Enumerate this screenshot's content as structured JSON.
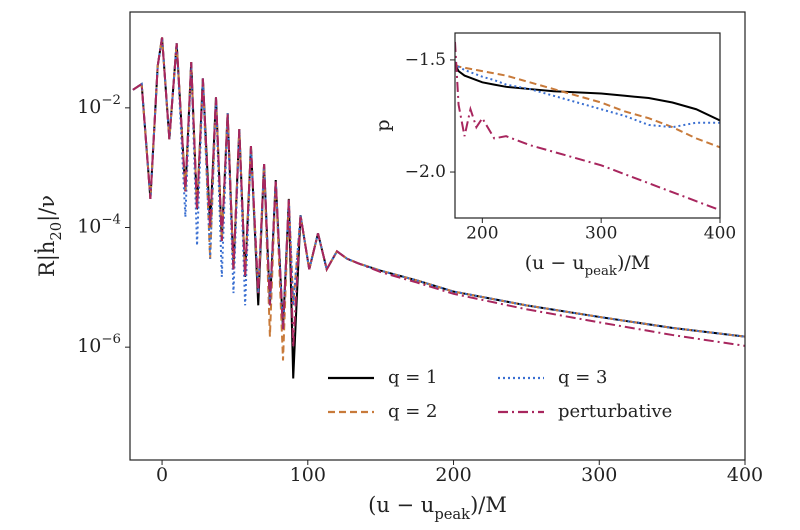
{
  "chart_data": [
    {
      "type": "line",
      "log_y": true,
      "x_label": [
        "(u − u",
        "peak",
        ")/M"
      ],
      "y_label": [
        "R|ḣ",
        "20",
        "|/ν"
      ],
      "xlim": [
        -22,
        400
      ],
      "ylim": [
        1.3e-08,
        0.4
      ],
      "xticks": [
        0,
        100,
        200,
        300,
        400
      ],
      "yticks": [
        {
          "value": 0.01,
          "label": "10",
          "exponent": "−2"
        },
        {
          "value": 0.0001,
          "label": "10",
          "exponent": "−4"
        },
        {
          "value": 1e-06,
          "label": "10",
          "exponent": "−6"
        }
      ],
      "legend": "lower right",
      "x": [
        -20,
        -14,
        -8,
        -3,
        0,
        5,
        10,
        16,
        20,
        24,
        28,
        33,
        37,
        41,
        45,
        49,
        53,
        57,
        61,
        66,
        70,
        74,
        78,
        83,
        87,
        90,
        95,
        101,
        107,
        113,
        120,
        127,
        135,
        150,
        175,
        200,
        250,
        300,
        350,
        400
      ],
      "series": [
        {
          "name": "q = 1",
          "color": "#000000",
          "linestyle": "solid",
          "values": [
            0.02,
            0.025,
            0.0003,
            0.05,
            0.15,
            0.003,
            0.12,
            0.0004,
            0.058,
            0.0002,
            0.031,
            0.0001,
            0.015,
            6e-05,
            0.0081,
            2e-05,
            0.0044,
            1.5e-05,
            0.0023,
            5e-06,
            0.00115,
            5e-06,
            0.00062,
            2e-06,
            0.0003,
            3e-07,
            0.00016,
            2e-05,
            8e-05,
            2e-05,
            4e-05,
            3e-05,
            2.5e-05,
            1.9e-05,
            1.3e-05,
            8.5e-06,
            5e-06,
            3.2e-06,
            2.1e-06,
            1.5e-06
          ]
        },
        {
          "name": "q = 2",
          "color": "#c87a3a",
          "linestyle": "dashed",
          "values": [
            0.02,
            0.025,
            0.0003,
            0.05,
            0.15,
            0.003,
            0.12,
            0.0004,
            0.058,
            0.0002,
            0.031,
            3e-05,
            0.015,
            6e-05,
            0.0081,
            2e-05,
            0.0044,
            1.5e-05,
            0.0023,
            8e-06,
            0.00115,
            1.5e-06,
            0.00062,
            6e-07,
            0.0003,
            5e-06,
            0.00016,
            2e-05,
            8e-05,
            2e-05,
            4e-05,
            3e-05,
            2.5e-05,
            1.9e-05,
            1.3e-05,
            8.5e-06,
            5e-06,
            3.2e-06,
            2.1e-06,
            1.5e-06
          ]
        },
        {
          "name": "q = 3",
          "color": "#3a6fd1",
          "linestyle": "dotted",
          "values": [
            0.02,
            0.025,
            0.0003,
            0.05,
            0.15,
            0.003,
            0.12,
            0.00015,
            0.058,
            5e-05,
            0.031,
            3e-05,
            0.015,
            1.5e-05,
            0.0081,
            8e-06,
            0.0044,
            5e-06,
            0.0023,
            8e-06,
            0.00115,
            5e-06,
            0.00062,
            2e-06,
            0.0003,
            5e-06,
            0.00016,
            2e-05,
            8e-05,
            2e-05,
            4e-05,
            3e-05,
            2.5e-05,
            1.9e-05,
            1.3e-05,
            8.5e-06,
            5e-06,
            3.2e-06,
            2.1e-06,
            1.5e-06
          ]
        },
        {
          "name": "perturbative",
          "color": "#a8265e",
          "linestyle": "dashdot",
          "values": [
            0.02,
            0.025,
            0.0003,
            0.05,
            0.15,
            0.003,
            0.12,
            0.0004,
            0.058,
            0.0002,
            0.031,
            0.0001,
            0.015,
            6e-05,
            0.0081,
            2e-05,
            0.0044,
            1.5e-05,
            0.0023,
            8e-06,
            0.00115,
            5e-06,
            0.00062,
            2e-06,
            0.0003,
            1e-06,
            0.00016,
            2e-05,
            8e-05,
            2e-05,
            4e-05,
            3e-05,
            2.5e-05,
            1.8e-05,
            1.2e-05,
            7.8e-06,
            4.3e-06,
            2.6e-06,
            1.6e-06,
            1.05e-06
          ]
        }
      ]
    },
    {
      "type": "line",
      "log_y": false,
      "x_label": [
        "(u − u",
        "peak",
        ")/M"
      ],
      "y_label": [
        "p"
      ],
      "xlim": [
        177,
        400
      ],
      "ylim": [
        -2.205,
        -1.38
      ],
      "xticks": [
        200,
        300,
        400
      ],
      "yticks": [
        {
          "value": -1.5,
          "label": "−1.5"
        },
        {
          "value": -2.0,
          "label": "−2.0"
        }
      ],
      "x": [
        177,
        180,
        185,
        190,
        195,
        200,
        210,
        220,
        240,
        260,
        280,
        300,
        320,
        340,
        360,
        380,
        400
      ],
      "series": [
        {
          "name": "q = 1",
          "color": "#000000",
          "linestyle": "solid",
          "values": [
            -1.52,
            -1.55,
            -1.57,
            -1.58,
            -1.59,
            -1.6,
            -1.61,
            -1.62,
            -1.63,
            -1.64,
            -1.645,
            -1.65,
            -1.66,
            -1.67,
            -1.69,
            -1.72,
            -1.77
          ]
        },
        {
          "name": "q = 2",
          "color": "#c87a3a",
          "linestyle": "dashed",
          "values": [
            -1.52,
            -1.53,
            -1.535,
            -1.54,
            -1.545,
            -1.55,
            -1.56,
            -1.57,
            -1.6,
            -1.63,
            -1.66,
            -1.69,
            -1.73,
            -1.76,
            -1.8,
            -1.85,
            -1.89
          ]
        },
        {
          "name": "q = 3",
          "color": "#3a6fd1",
          "linestyle": "dotted",
          "values": [
            -1.51,
            -1.53,
            -1.545,
            -1.555,
            -1.565,
            -1.575,
            -1.59,
            -1.61,
            -1.63,
            -1.66,
            -1.69,
            -1.72,
            -1.75,
            -1.79,
            -1.8,
            -1.78,
            -1.78
          ]
        },
        {
          "name": "perturbative",
          "color": "#a8265e",
          "linestyle": "dashdot",
          "values": [
            -1.42,
            -1.7,
            -1.84,
            -1.72,
            -1.8,
            -1.76,
            -1.85,
            -1.84,
            -1.88,
            -1.91,
            -1.94,
            -1.97,
            -2.01,
            -2.05,
            -2.09,
            -2.13,
            -2.17
          ]
        }
      ]
    }
  ]
}
